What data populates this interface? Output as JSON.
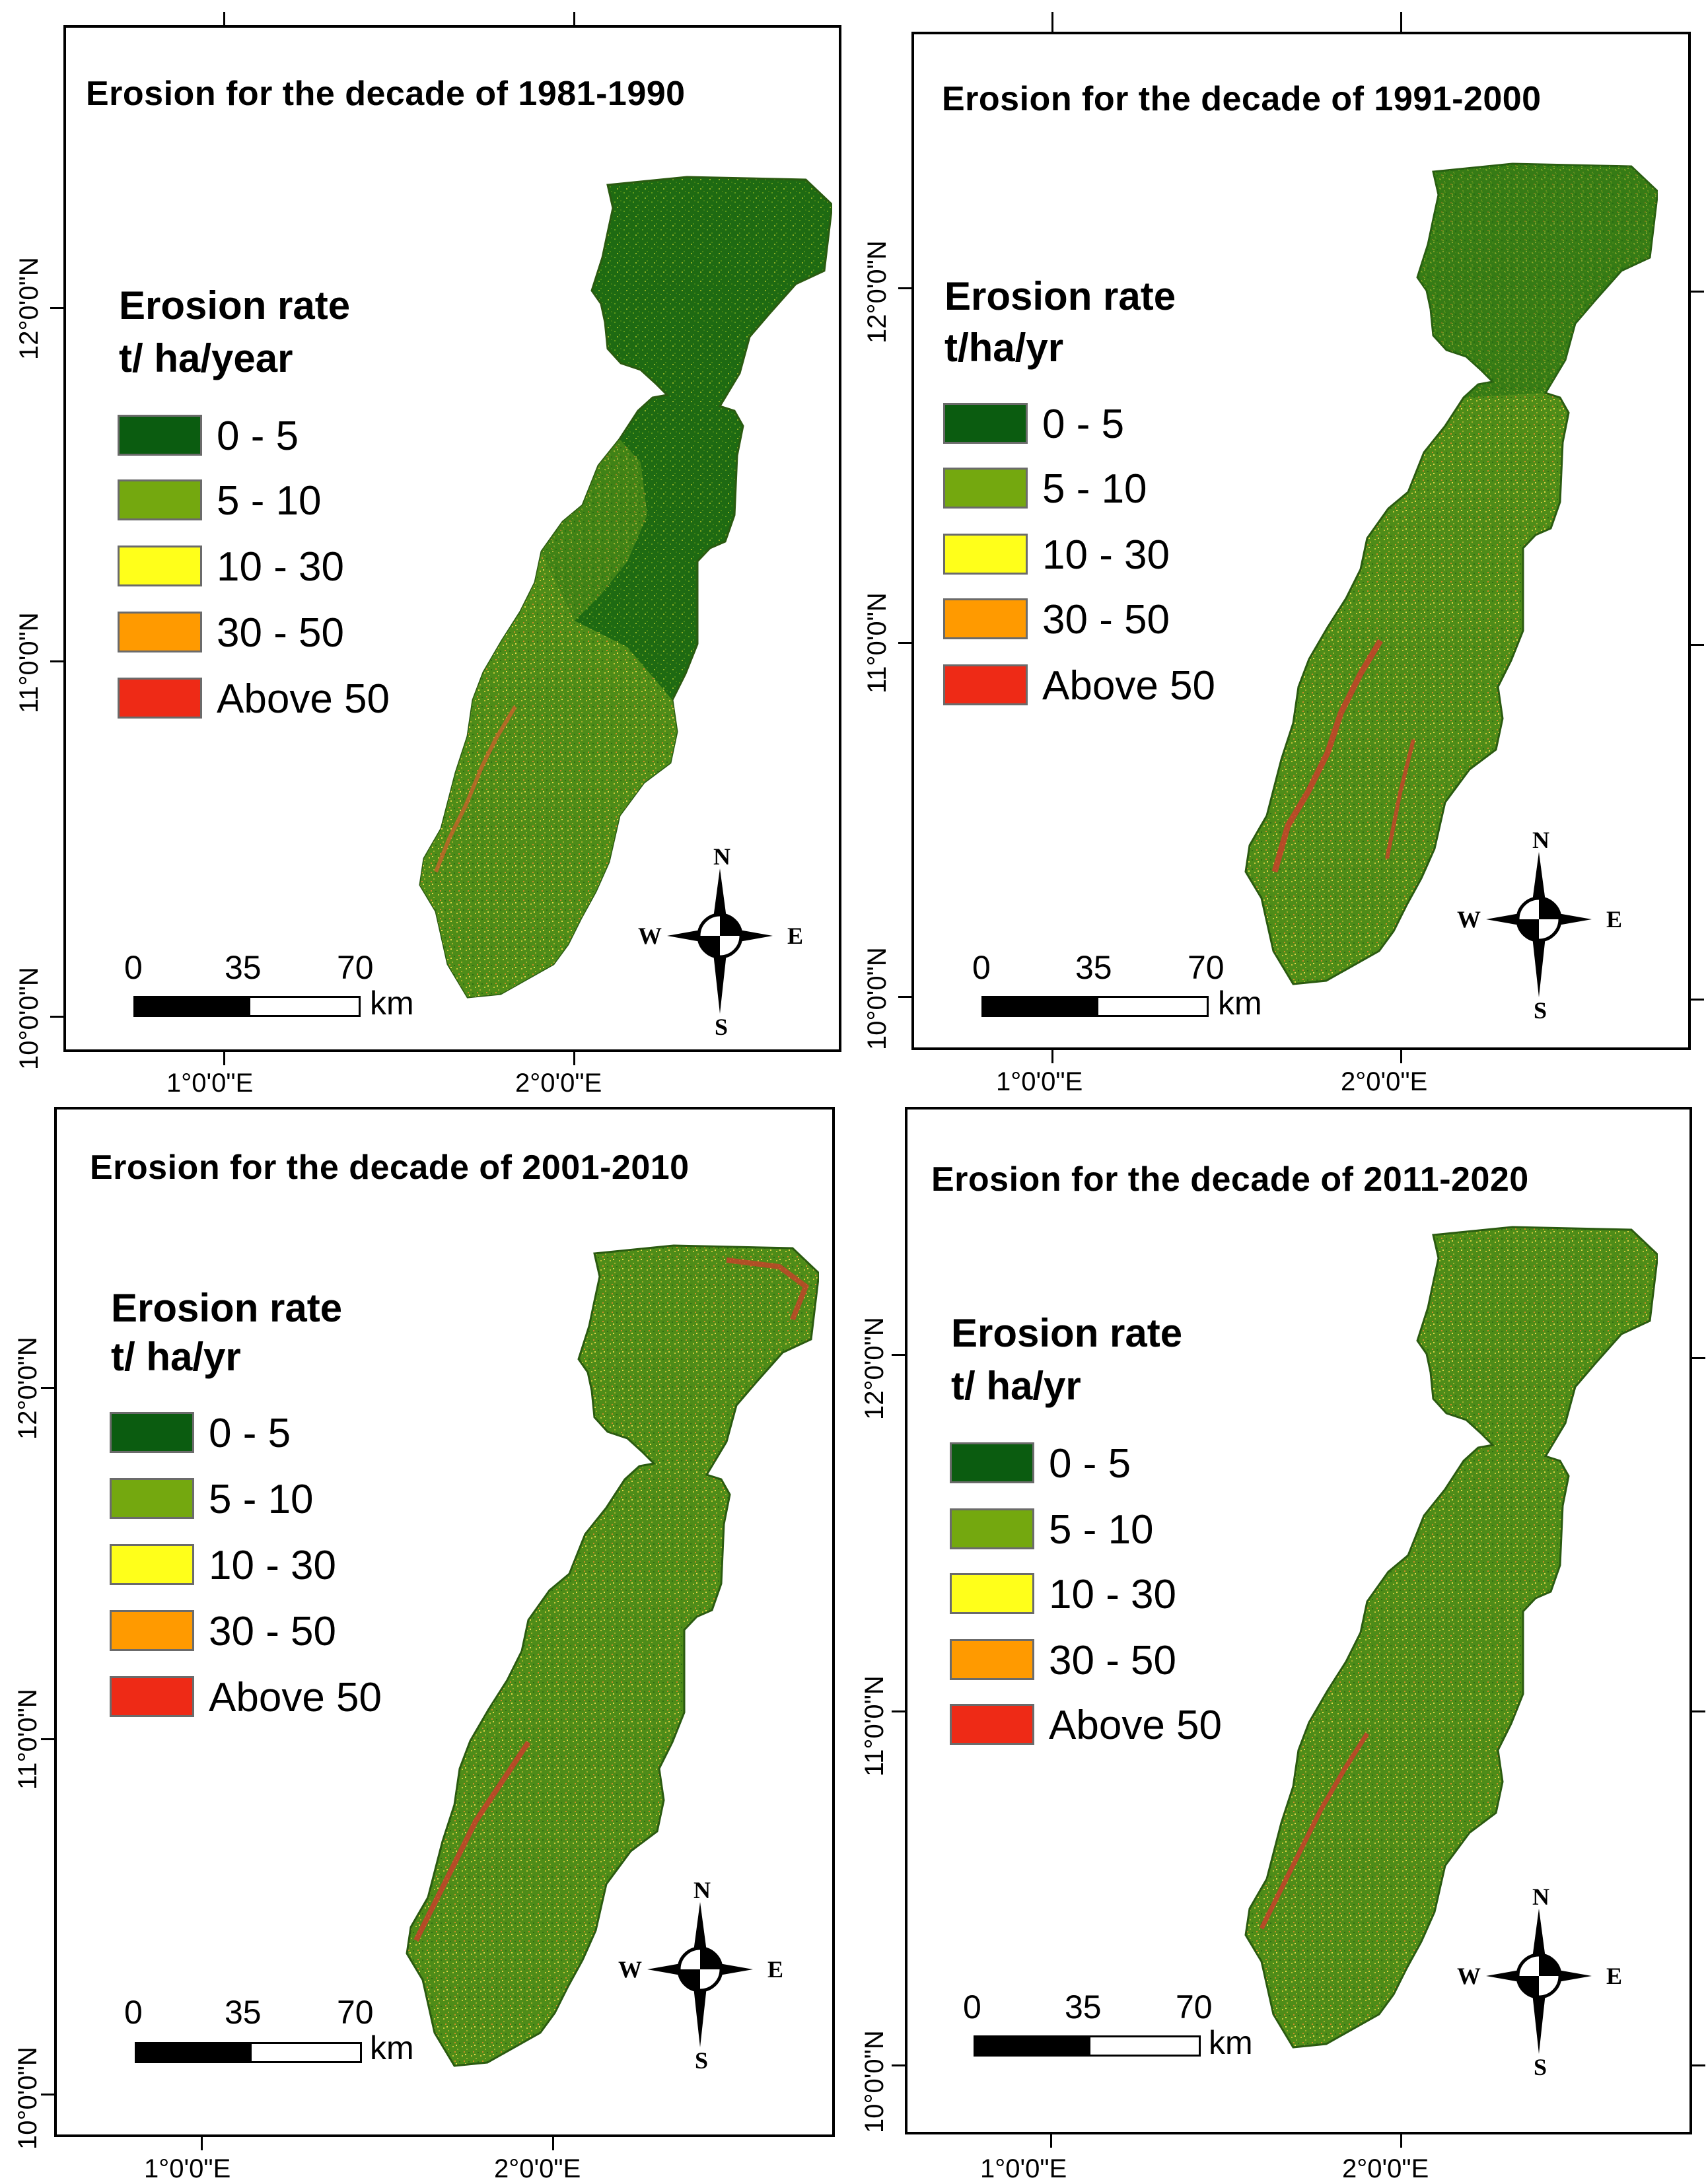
{
  "legend_colors": {
    "c0": "#0b5c10",
    "c1": "#74a80f",
    "c2": "#ffff1a",
    "c3": "#ff9a00",
    "c4": "#ee2a16"
  },
  "panels": [
    {
      "title": "Erosion  for the decade of 1981-1990",
      "legend_title_1": "Erosion rate",
      "legend_title_2": "t/ ha/year",
      "classes": [
        "0 - 5",
        "5 - 10",
        "10 - 30",
        "30 - 50",
        "Above 50"
      ],
      "lat_labels": [
        "12°0'0\"N",
        "11°0'0\"N",
        "10°0'0\"N"
      ],
      "lon_labels": [
        "1°0'0\"E",
        "2°0'0\"E"
      ],
      "scale": {
        "t0": "0",
        "t1": "35",
        "t2": "70",
        "unit": "km"
      },
      "compass": {
        "n": "N",
        "s": "S",
        "e": "E",
        "w": "W"
      }
    },
    {
      "title": "Erosion for the decade of 1991-2000",
      "legend_title_1": "Erosion rate",
      "legend_title_2": "t/ha/yr",
      "classes": [
        "0 - 5",
        "5 - 10",
        "10 - 30",
        "30 - 50",
        "Above 50"
      ],
      "lat_labels": [
        "12°0'0\"N",
        "11°0'0\"N",
        "10°0'0\"N"
      ],
      "lon_labels": [
        "1°0'0\"E",
        "2°0'0\"E"
      ],
      "scale": {
        "t0": "0",
        "t1": "35",
        "t2": "70",
        "unit": "km"
      },
      "compass": {
        "n": "N",
        "s": "S",
        "e": "E",
        "w": "W"
      }
    },
    {
      "title": "Erosion  for the decade of 2001-2010",
      "legend_title_1": "Erosion rate",
      "legend_title_2": "t/ ha/yr",
      "classes": [
        "0 - 5",
        "5 - 10",
        "10 - 30",
        "30 - 50",
        "Above 50"
      ],
      "lat_labels": [
        "12°0'0\"N",
        "11°0'0\"N",
        "10°0'0\"N"
      ],
      "lon_labels": [
        "1°0'0\"E",
        "2°0'0\"E"
      ],
      "scale": {
        "t0": "0",
        "t1": "35",
        "t2": "70",
        "unit": "km"
      },
      "compass": {
        "n": "N",
        "s": "S",
        "e": "E",
        "w": "W"
      }
    },
    {
      "title": "Erosion  for the decade of 2011-2020",
      "legend_title_1": "Erosion rate",
      "legend_title_2": "t/ ha/yr",
      "classes": [
        "0 - 5",
        "5 - 10",
        "10 - 30",
        "30 - 50",
        "Above 50"
      ],
      "lat_labels": [
        "12°0'0\"N",
        "11°0'0\"N",
        "10°0'0\"N"
      ],
      "lon_labels": [
        "1°0'0\"E",
        "2°0'0\"E"
      ],
      "scale": {
        "t0": "0",
        "t1": "35",
        "t2": "70",
        "unit": "km"
      },
      "compass": {
        "n": "N",
        "s": "S",
        "e": "E",
        "w": "W"
      }
    }
  ]
}
